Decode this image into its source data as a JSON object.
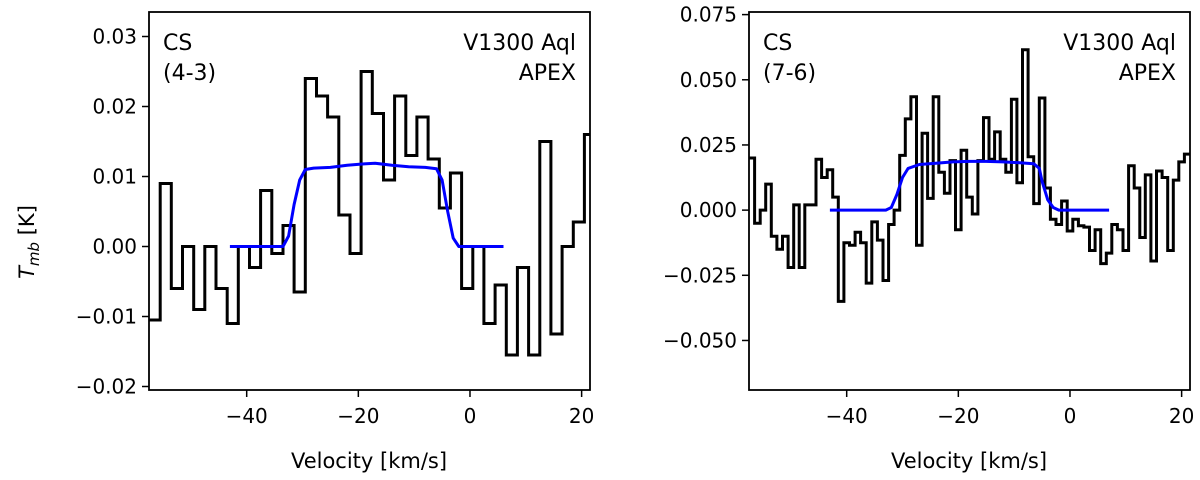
{
  "ylabel_italic": "T",
  "ylabel_sub": "mb",
  "ylabel_unit": " [K]",
  "colors": {
    "spectrum": "#000000",
    "model": "#0000ff"
  },
  "chart_data": [
    {
      "type": "line",
      "molecule": "CS",
      "transition": "(4-3)",
      "source": "V1300 Aql",
      "telescope": "APEX",
      "xlabel": "Velocity [km/s]",
      "ylabel": "T_mb [K]",
      "xlim": [
        -57.5,
        21.5
      ],
      "ylim": [
        -0.0205,
        0.0335
      ],
      "xticks": [
        -40,
        -20,
        0,
        20
      ],
      "xtick_labels": [
        "−40",
        "−20",
        "0",
        "20"
      ],
      "yticks": [
        -0.02,
        -0.01,
        0.0,
        0.01,
        0.02,
        0.03
      ],
      "ytick_labels": [
        "−0.02",
        "−0.01",
        "0.00",
        "0.01",
        "0.02",
        "0.03"
      ],
      "series": [
        {
          "name": "spectrum",
          "style": "steps",
          "bin_edges": [
            -57.5,
            -55.5,
            -53.5,
            -51.5,
            -49.5,
            -47.5,
            -45.5,
            -43.5,
            -41.5,
            -39.5,
            -37.5,
            -35.5,
            -33.5,
            -31.5,
            -29.5,
            -27.5,
            -25.5,
            -23.5,
            -21.5,
            -19.5,
            -17.5,
            -15.5,
            -13.5,
            -11.5,
            -9.5,
            -7.5,
            -5.5,
            -3.5,
            -1.5,
            0.5,
            2.5,
            4.5,
            6.5,
            8.5,
            10.5,
            12.5,
            14.5,
            16.5,
            18.5,
            20.5,
            21.5
          ],
          "values": [
            -0.0105,
            0.009,
            -0.006,
            0.0,
            -0.009,
            0.0,
            -0.006,
            -0.011,
            0.0,
            -0.003,
            0.008,
            -0.001,
            0.003,
            -0.0065,
            0.024,
            0.0215,
            0.0185,
            0.0045,
            -0.001,
            0.025,
            0.019,
            0.0095,
            0.0215,
            0.013,
            0.0185,
            0.0125,
            0.0055,
            0.0105,
            -0.006,
            0.0,
            -0.011,
            -0.0055,
            -0.0155,
            -0.003,
            -0.0155,
            0.015,
            -0.0125,
            0.0,
            0.0035,
            0.016
          ]
        },
        {
          "name": "model",
          "style": "smooth",
          "x": [
            -43,
            -40,
            -36,
            -33.5,
            -32.5,
            -31.5,
            -30.5,
            -29.5,
            -28,
            -25,
            -22,
            -19,
            -17,
            -14,
            -11,
            -8,
            -6,
            -5,
            -4,
            -3,
            -2,
            0,
            3,
            6
          ],
          "y": [
            0.0,
            0.0,
            0.0,
            0.0,
            0.0015,
            0.006,
            0.0095,
            0.011,
            0.0112,
            0.0113,
            0.0116,
            0.0118,
            0.0119,
            0.0116,
            0.0114,
            0.0113,
            0.0111,
            0.0095,
            0.005,
            0.0012,
            0.0,
            0.0,
            0.0,
            0.0
          ]
        }
      ]
    },
    {
      "type": "line",
      "molecule": "CS",
      "transition": "(7-6)",
      "source": "V1300 Aql",
      "telescope": "APEX",
      "xlabel": "Velocity [km/s]",
      "ylabel": "",
      "xlim": [
        -57.5,
        21.5
      ],
      "ylim": [
        -0.069,
        0.076
      ],
      "xticks": [
        -40,
        -20,
        0,
        20
      ],
      "xtick_labels": [
        "−40",
        "−20",
        "0",
        "20"
      ],
      "yticks": [
        -0.05,
        -0.025,
        0.0,
        0.025,
        0.05,
        0.075
      ],
      "ytick_labels": [
        "−0.050",
        "−0.025",
        "0.000",
        "0.025",
        "0.050",
        "0.075"
      ],
      "series": [
        {
          "name": "spectrum",
          "style": "steps",
          "bin_edges": [
            -57.5,
            -56.5,
            -55.5,
            -54.5,
            -53.5,
            -52.5,
            -51.5,
            -50.5,
            -49.5,
            -48.5,
            -47.5,
            -46.5,
            -45.5,
            -44.5,
            -43.5,
            -42.5,
            -41.5,
            -40.5,
            -39.5,
            -38.5,
            -37.5,
            -36.5,
            -35.5,
            -34.5,
            -33.5,
            -32.5,
            -31.5,
            -30.5,
            -29.5,
            -28.5,
            -27.5,
            -26.5,
            -25.5,
            -24.5,
            -23.5,
            -22.5,
            -21.5,
            -20.5,
            -19.5,
            -18.5,
            -17.5,
            -16.5,
            -15.5,
            -14.5,
            -13.5,
            -12.5,
            -11.5,
            -10.5,
            -9.5,
            -8.5,
            -7.5,
            -6.5,
            -5.5,
            -4.5,
            -3.5,
            -2.5,
            -1.5,
            -0.5,
            0.5,
            1.5,
            2.5,
            3.5,
            4.5,
            5.5,
            6.5,
            7.5,
            8.5,
            9.5,
            10.5,
            11.5,
            12.5,
            13.5,
            14.5,
            15.5,
            16.5,
            17.5,
            18.5,
            19.5,
            20.5,
            21.5
          ],
          "values": [
            0.02,
            -0.005,
            0.0,
            0.01,
            -0.01,
            -0.015,
            -0.01,
            -0.022,
            0.002,
            -0.022,
            0.002,
            0.002,
            0.0195,
            0.0125,
            0.0155,
            0.005,
            -0.035,
            -0.0125,
            -0.0135,
            -0.0085,
            -0.0125,
            -0.028,
            -0.0045,
            -0.0115,
            -0.027,
            -0.0055,
            0.0,
            0.021,
            0.035,
            0.0435,
            -0.0135,
            0.0295,
            0.0045,
            0.0435,
            0.0145,
            0.0065,
            0.019,
            -0.0075,
            0.023,
            0.005,
            -0.0015,
            0.019,
            0.0355,
            0.0195,
            0.03,
            0.0195,
            0.0145,
            0.0425,
            0.0105,
            0.0615,
            0.0205,
            0.0025,
            0.043,
            0.0085,
            -0.0035,
            -0.0055,
            0.0035,
            -0.008,
            -0.0035,
            -0.006,
            -0.0065,
            -0.0155,
            -0.0075,
            -0.0205,
            -0.0165,
            -0.0055,
            -0.0075,
            -0.0155,
            0.017,
            0.0085,
            -0.0105,
            0.0135,
            -0.0195,
            0.015,
            0.0125,
            -0.0155,
            0.0115,
            0.0185,
            0.0215
          ]
        },
        {
          "name": "model",
          "style": "smooth",
          "x": [
            -43,
            -40,
            -36,
            -33,
            -32,
            -31,
            -30,
            -29,
            -27,
            -24,
            -21,
            -18,
            -15,
            -12,
            -9,
            -6.5,
            -5.5,
            -5,
            -4,
            -3,
            -2,
            0,
            3,
            7
          ],
          "y": [
            0.0,
            0.0,
            0.0,
            0.0,
            0.001,
            0.006,
            0.0125,
            0.016,
            0.0175,
            0.018,
            0.0185,
            0.0187,
            0.0187,
            0.0185,
            0.0182,
            0.0178,
            0.016,
            0.011,
            0.004,
            0.001,
            0.0,
            0.0,
            0.0,
            0.0
          ]
        }
      ]
    }
  ]
}
